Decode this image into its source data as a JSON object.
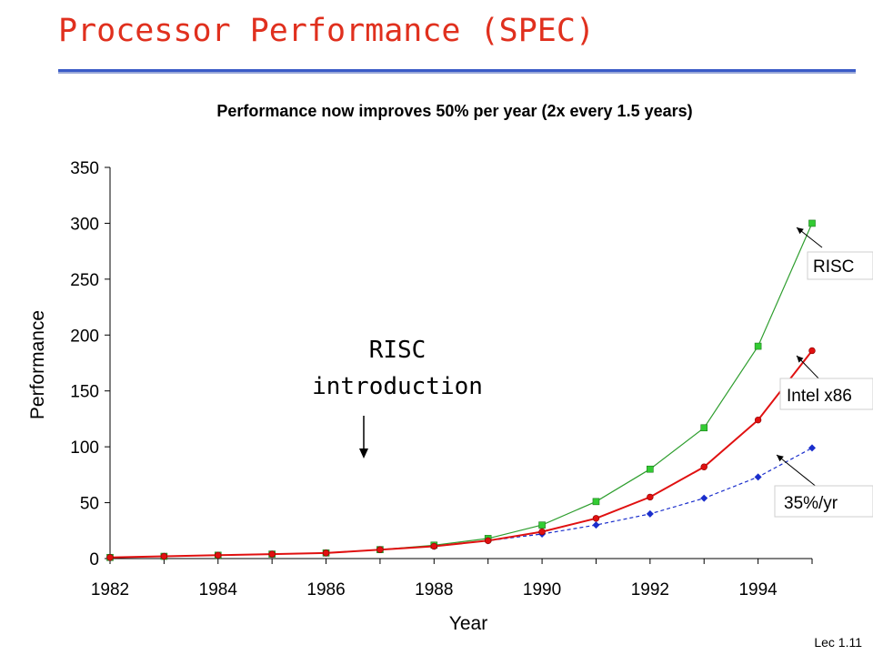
{
  "slide": {
    "title": "Processor Performance (SPEC)",
    "subtitle": "Performance now improves  50% per year (2x every 1.5 years)",
    "footer": "Lec 1.11"
  },
  "chart_data": {
    "type": "line",
    "xlabel": "Year",
    "ylabel": "Performance",
    "ylim": [
      0,
      350
    ],
    "yticks": [
      0,
      50,
      100,
      150,
      200,
      250,
      300,
      350
    ],
    "xticks": [
      1982,
      1984,
      1986,
      1988,
      1990,
      1992,
      1994
    ],
    "x": [
      1982,
      1983,
      1984,
      1985,
      1986,
      1987,
      1988,
      1989,
      1990,
      1991,
      1992,
      1993,
      1994,
      1995
    ],
    "grid": false,
    "series": [
      {
        "name": "RISC",
        "color": "#2e9e2e",
        "marker_color": "#33cc33",
        "marker": "square",
        "dashed": false,
        "values": [
          1,
          2,
          3,
          4,
          5,
          8,
          12,
          18,
          30,
          51,
          80,
          117,
          190,
          300
        ]
      },
      {
        "name": "Intel x86",
        "color": "#e01010",
        "marker_color": "#e01010",
        "marker": "circle",
        "dashed": false,
        "values": [
          1,
          2,
          3,
          4,
          5,
          8,
          11,
          16,
          24,
          36,
          55,
          82,
          124,
          186
        ]
      },
      {
        "name": "35%/yr",
        "color": "#1a2ecc",
        "marker_color": "#1a2ecc",
        "marker": "diamond",
        "dashed": true,
        "values": [
          1,
          2,
          3,
          4,
          5,
          8,
          11,
          16,
          22,
          30,
          40,
          54,
          73,
          99
        ]
      }
    ],
    "annotations": [
      {
        "line1": "RISC",
        "line2": "introduction"
      }
    ]
  }
}
